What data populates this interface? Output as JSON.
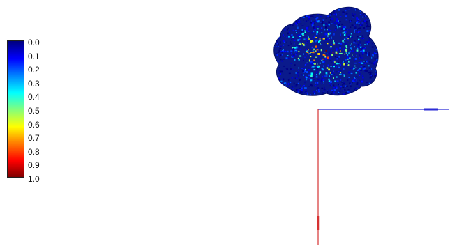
{
  "colorbar": {
    "labels": [
      "0.0",
      "0.1",
      "0.2",
      "0.3",
      "0.4",
      "0.5",
      "0.6",
      "0.7",
      "0.8",
      "0.9",
      "1.0"
    ],
    "colormap": "jet",
    "range": [
      0.0,
      1.0
    ],
    "colors": [
      "#00007f",
      "#0000ff",
      "#007fff",
      "#00ffff",
      "#7fff7f",
      "#ffff00",
      "#ff7f00",
      "#ff0000",
      "#7f0000"
    ]
  },
  "scene": {
    "object": "point-cloud-blob",
    "axis_x_color": "#2b2bd6",
    "axis_y_color": "#d63232"
  }
}
